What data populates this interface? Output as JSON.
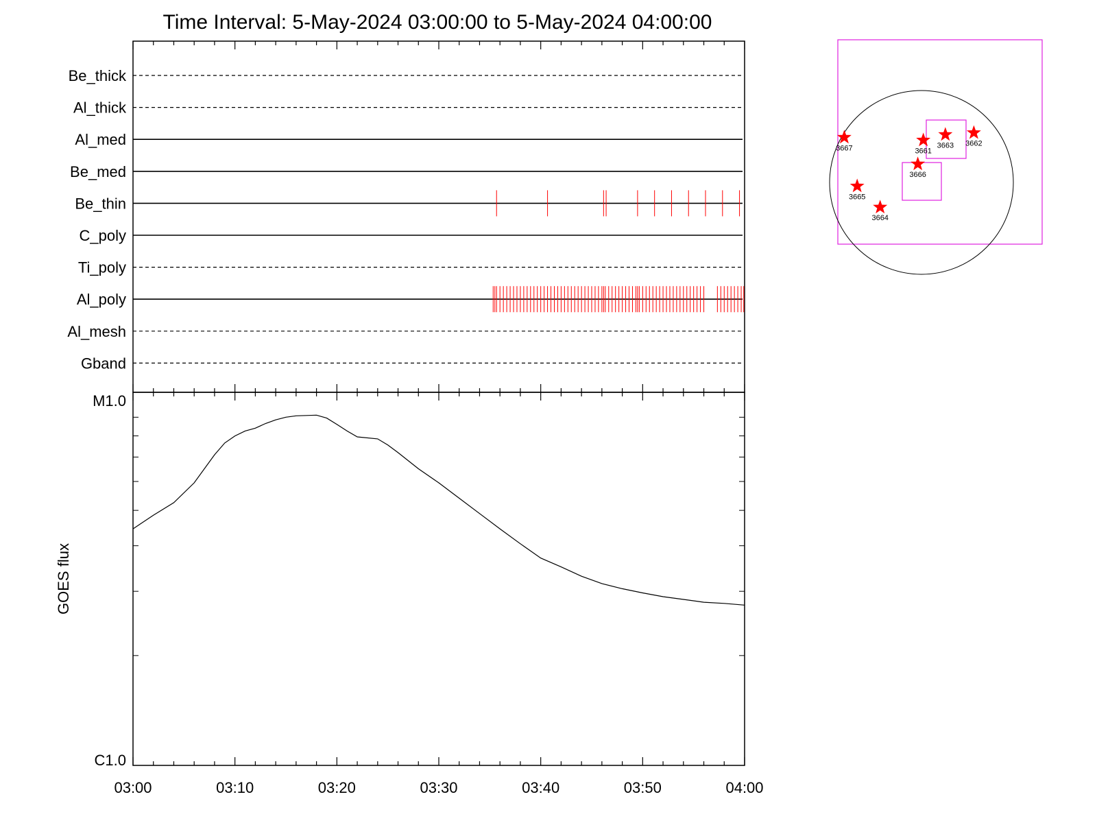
{
  "title": "Time Interval:  5-May-2024 03:00:00 to  5-May-2024 04:00:00",
  "colors": {
    "events": "#ff0000",
    "boxes": "#e020e0",
    "axes": "#000000"
  },
  "chart_data": [
    {
      "type": "event-timeline",
      "x_ticks": [
        "03:00",
        "03:10",
        "03:20",
        "03:30",
        "03:40",
        "03:50",
        "04:00"
      ],
      "channels": [
        {
          "name": "Be_thick",
          "style": "dashed",
          "events": []
        },
        {
          "name": "Al_thick",
          "style": "dashed",
          "events": []
        },
        {
          "name": "Al_med",
          "style": "solid",
          "events": []
        },
        {
          "name": "Be_med",
          "style": "solid",
          "events": []
        },
        {
          "name": "Be_thin",
          "style": "solid",
          "events": [
            "03:35:40",
            "03:40:40",
            "03:46:10",
            "03:46:25",
            "03:49:30",
            "03:51:10",
            "03:52:50",
            "03:54:30",
            "03:56:10",
            "03:57:50",
            "03:59:30"
          ]
        },
        {
          "name": "C_poly",
          "style": "solid",
          "events": []
        },
        {
          "name": "Ti_poly",
          "style": "dashed",
          "events": []
        },
        {
          "name": "Al_poly",
          "style": "solid",
          "events": [
            "03:35:20",
            "03:35:30",
            "03:35:40",
            "03:36:00",
            "03:36:20",
            "03:36:40",
            "03:37:00",
            "03:37:20",
            "03:37:40",
            "03:38:00",
            "03:38:20",
            "03:38:40",
            "03:39:00",
            "03:39:20",
            "03:39:40",
            "03:40:00",
            "03:40:20",
            "03:40:40",
            "03:41:00",
            "03:41:20",
            "03:41:40",
            "03:42:00",
            "03:42:20",
            "03:42:40",
            "03:43:00",
            "03:43:20",
            "03:43:40",
            "03:44:00",
            "03:44:20",
            "03:44:40",
            "03:45:00",
            "03:45:20",
            "03:45:40",
            "03:46:00",
            "03:46:10",
            "03:46:20",
            "03:46:40",
            "03:47:00",
            "03:47:20",
            "03:47:40",
            "03:48:00",
            "03:48:20",
            "03:48:40",
            "03:49:00",
            "03:49:20",
            "03:49:30",
            "03:49:40",
            "03:50:00",
            "03:50:20",
            "03:50:40",
            "03:51:00",
            "03:51:20",
            "03:51:40",
            "03:52:00",
            "03:52:20",
            "03:52:40",
            "03:53:00",
            "03:53:20",
            "03:53:40",
            "03:54:00",
            "03:54:20",
            "03:54:40",
            "03:55:00",
            "03:55:20",
            "03:55:40",
            "03:56:00",
            "03:57:20",
            "03:57:40",
            "03:58:00",
            "03:58:20",
            "03:58:40",
            "03:59:00",
            "03:59:20",
            "03:59:40",
            "03:59:55"
          ]
        },
        {
          "name": "Al_mesh",
          "style": "dashed",
          "events": []
        },
        {
          "name": "Gband",
          "style": "dashed",
          "events": []
        }
      ]
    },
    {
      "type": "line",
      "ylabel": "GOES flux",
      "y_scale": "log",
      "y_ticks": [
        "M1.0",
        "C1.0"
      ],
      "ylim": [
        1e-06,
        1e-05
      ],
      "x_ticks": [
        "03:00",
        "03:10",
        "03:20",
        "03:30",
        "03:40",
        "03:50",
        "04:00"
      ],
      "x": [
        0,
        2,
        4,
        6,
        8,
        9,
        10,
        11,
        12,
        13,
        14,
        15,
        16,
        17,
        18,
        19,
        20,
        21,
        22,
        24,
        25,
        26,
        28,
        30,
        32,
        34,
        36,
        38,
        40,
        42,
        44,
        46,
        48,
        50,
        52,
        54,
        56,
        58,
        60
      ],
      "y": [
        4.45e-06,
        4.85e-06,
        5.25e-06,
        5.95e-06,
        7.1e-06,
        7.65e-06,
        8e-06,
        8.25e-06,
        8.4e-06,
        8.65e-06,
        8.85e-06,
        9e-06,
        9.08e-06,
        9.1e-06,
        9.12e-06,
        8.95e-06,
        8.6e-06,
        8.25e-06,
        7.95e-06,
        7.85e-06,
        7.55e-06,
        7.2e-06,
        6.5e-06,
        5.95e-06,
        5.4e-06,
        4.9e-06,
        4.45e-06,
        4.05e-06,
        3.7e-06,
        3.5e-06,
        3.3e-06,
        3.15e-06,
        3.05e-06,
        2.97e-06,
        2.9e-06,
        2.85e-06,
        2.8e-06,
        2.78e-06,
        2.75e-06
      ]
    },
    {
      "type": "scatter",
      "labels": [
        "3667",
        "3661",
        "3663",
        "3662",
        "3666",
        "3665",
        "3664"
      ],
      "points": [
        {
          "label": "3667",
          "px": -0.84,
          "py": -0.49
        },
        {
          "label": "3661",
          "px": 0.02,
          "py": -0.46
        },
        {
          "label": "3663",
          "px": 0.26,
          "py": -0.52
        },
        {
          "label": "3662",
          "px": 0.57,
          "py": -0.54
        },
        {
          "label": "3666",
          "px": -0.04,
          "py": -0.2
        },
        {
          "label": "3665",
          "px": -0.7,
          "py": 0.04
        },
        {
          "label": "3664",
          "px": -0.45,
          "py": 0.27
        }
      ]
    }
  ]
}
